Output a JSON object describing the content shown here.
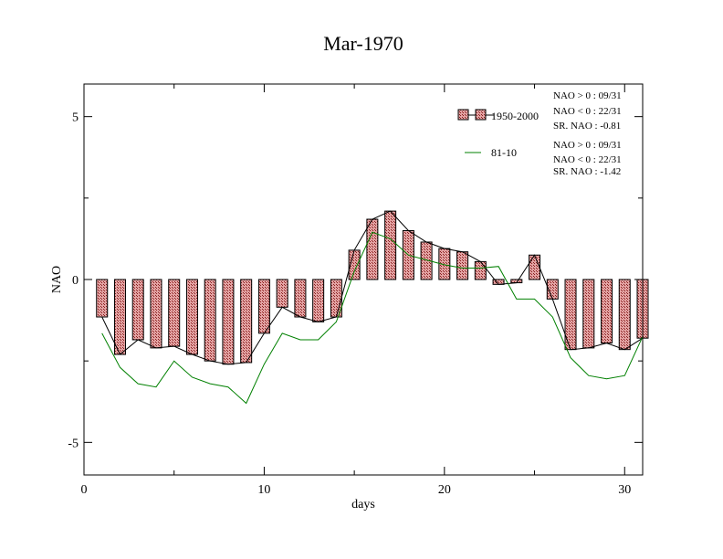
{
  "chart_data": {
    "type": "bar",
    "title": "Mar-1970",
    "xlabel": "days",
    "ylabel": "NAO",
    "xlim": [
      0,
      31
    ],
    "ylim": [
      -6,
      6
    ],
    "x_ticks": [
      0,
      10,
      20,
      30
    ],
    "y_ticks": [
      -5,
      0,
      5
    ],
    "x": [
      1,
      2,
      3,
      4,
      5,
      6,
      7,
      8,
      9,
      10,
      11,
      12,
      13,
      14,
      15,
      16,
      17,
      18,
      19,
      20,
      21,
      22,
      23,
      24,
      25,
      26,
      27,
      28,
      29,
      30,
      31
    ],
    "series": [
      {
        "name": "1950-2000",
        "style": "bar+line",
        "values": [
          -1.15,
          -2.3,
          -1.85,
          -2.1,
          -2.05,
          -2.3,
          -2.5,
          -2.6,
          -2.55,
          -1.65,
          -0.85,
          -1.15,
          -1.3,
          -1.15,
          0.9,
          1.85,
          2.1,
          1.5,
          1.15,
          0.95,
          0.85,
          0.55,
          -0.15,
          -0.1,
          0.75,
          -0.6,
          -2.15,
          -2.1,
          -1.95,
          -2.15,
          -1.8
        ]
      },
      {
        "name": "81-10",
        "style": "line",
        "values": [
          -1.65,
          -2.7,
          -3.2,
          -3.3,
          -2.5,
          -3.0,
          -3.2,
          -3.3,
          -3.8,
          -2.6,
          -1.65,
          -1.85,
          -1.85,
          -1.3,
          0.25,
          1.45,
          1.25,
          0.75,
          0.6,
          0.45,
          0.35,
          0.35,
          0.4,
          -0.6,
          -0.6,
          -1.15,
          -2.4,
          -2.95,
          -3.05,
          -2.95,
          -1.75
        ]
      }
    ],
    "stats": [
      [
        "NAO > 0 : 09/31",
        "NAO < 0 : 22/31",
        "SR. NAO : -0.81"
      ],
      [
        "NAO > 0 : 09/31",
        "NAO < 0 : 22/31",
        "SR. NAO : -1.42"
      ]
    ],
    "colors": {
      "bar_fill": "#d98c8c",
      "bar_hatch": "#8a1f1f",
      "line1": "#000000",
      "line2": "#008000"
    },
    "grid": false,
    "legend_placement": "top-right"
  }
}
